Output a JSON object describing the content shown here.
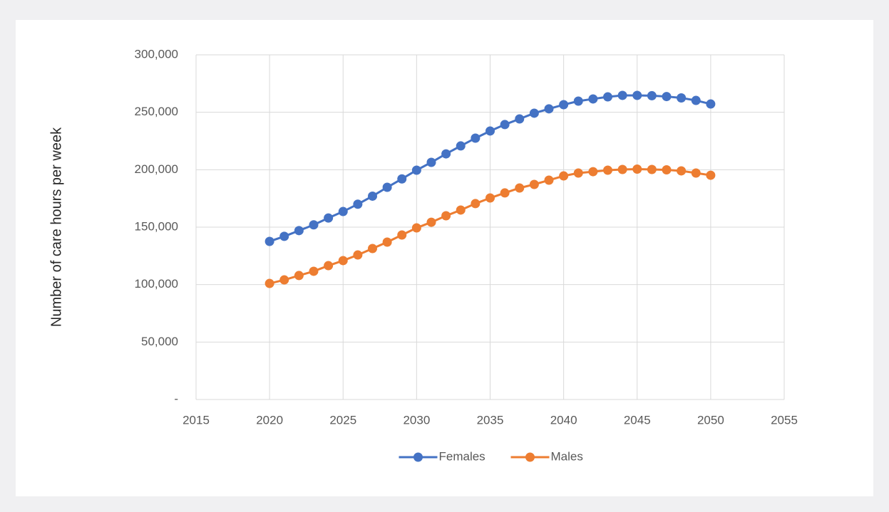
{
  "chart_data": {
    "type": "line",
    "y_label": "Number of care hours per week",
    "x": [
      2020,
      2021,
      2022,
      2023,
      2024,
      2025,
      2026,
      2027,
      2028,
      2029,
      2030,
      2031,
      2032,
      2033,
      2034,
      2035,
      2036,
      2037,
      2038,
      2039,
      2040,
      2041,
      2042,
      2043,
      2044,
      2045,
      2046,
      2047,
      2048,
      2049,
      2050
    ],
    "series": [
      {
        "name": "Females",
        "color": "#4472c4",
        "values": [
          137600,
          142000,
          147000,
          152000,
          158000,
          163600,
          170000,
          177000,
          184700,
          192000,
          199600,
          206400,
          213800,
          220700,
          227500,
          233700,
          239300,
          244200,
          249200,
          253000,
          256600,
          259700,
          261600,
          263400,
          264700,
          264700,
          264400,
          263700,
          262500,
          260300,
          257200
        ]
      },
      {
        "name": "Males",
        "color": "#ed7d31",
        "values": [
          101000,
          104100,
          107900,
          111600,
          116500,
          120900,
          125800,
          131400,
          137000,
          143200,
          149400,
          154300,
          159900,
          164900,
          170500,
          175400,
          179800,
          184100,
          187200,
          190900,
          194600,
          197100,
          198300,
          199600,
          200200,
          200500,
          200200,
          199900,
          199000,
          197100,
          195200
        ]
      }
    ],
    "xlim": [
      2015,
      2055
    ],
    "xticks": [
      2015,
      2020,
      2025,
      2030,
      2035,
      2040,
      2045,
      2050,
      2055
    ],
    "ylim": [
      0,
      300000
    ],
    "yticks": [
      {
        "value": 0,
        "label": "-"
      },
      {
        "value": 50000,
        "label": "50,000"
      },
      {
        "value": 100000,
        "label": "100,000"
      },
      {
        "value": 150000,
        "label": "150,000"
      },
      {
        "value": 200000,
        "label": "200,000"
      },
      {
        "value": 250000,
        "label": "250,000"
      },
      {
        "value": 300000,
        "label": "300,000"
      }
    ],
    "grid": true,
    "legend": "bottom"
  }
}
